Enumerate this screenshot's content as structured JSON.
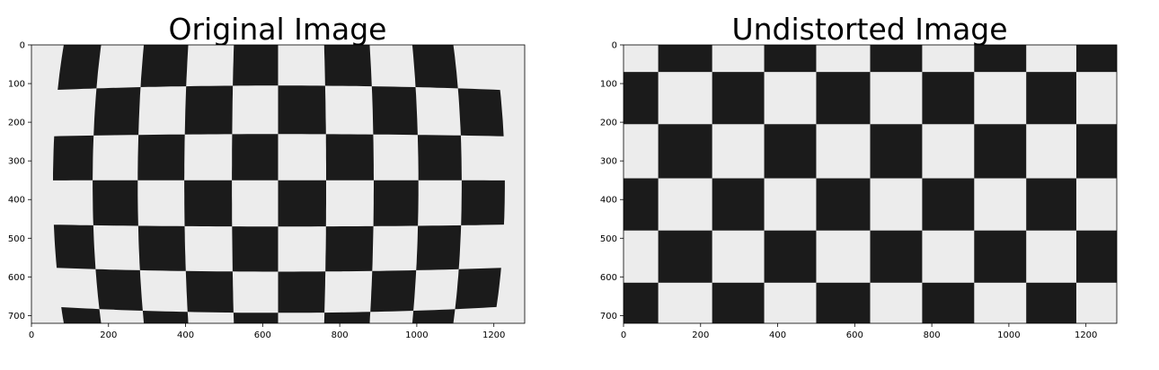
{
  "chart_data": [
    {
      "type": "image",
      "title": "Original Image",
      "xlim": [
        0,
        1280
      ],
      "ylim": [
        720,
        0
      ],
      "xticks": [
        0,
        200,
        400,
        600,
        800,
        1000,
        1200
      ],
      "yticks": [
        0,
        100,
        200,
        300,
        400,
        500,
        600,
        700
      ],
      "content": "checkerboard-distorted"
    },
    {
      "type": "image",
      "title": "Undistorted Image",
      "xlim": [
        0,
        1280
      ],
      "ylim": [
        720,
        0
      ],
      "xticks": [
        0,
        200,
        400,
        600,
        800,
        1000,
        1200
      ],
      "yticks": [
        0,
        100,
        200,
        300,
        400,
        500,
        600,
        700
      ],
      "content": "checkerboard-undistorted"
    }
  ],
  "colors": {
    "dark": "#1b1b1b",
    "light": "#ececec",
    "axis": "#000000"
  }
}
